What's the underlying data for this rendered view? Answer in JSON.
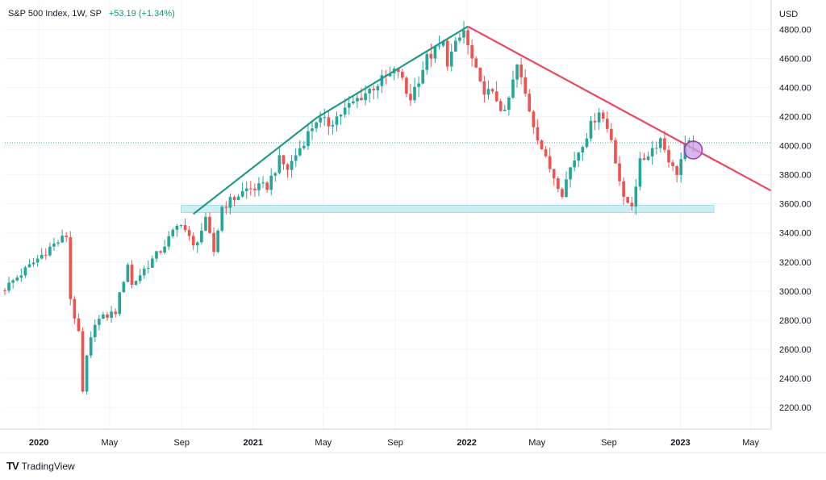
{
  "legend": {
    "symbol": "S&P 500 Index, 1W, SP",
    "change": "+53.19 (+1.34%)"
  },
  "brand": {
    "logo": "TV",
    "name": "TradingView"
  },
  "colors": {
    "up": "#26a69a",
    "down": "#ef5350",
    "support": "#cdeff3",
    "uptrend": "#1e9a87",
    "downtrend": "#e9475f",
    "marker": "#c8a0e8"
  },
  "chart_data": {
    "type": "candlestick",
    "currency_label": "USD",
    "yticks": [
      2200,
      2400,
      2600,
      2800,
      3000,
      3200,
      3400,
      3600,
      3800,
      4000,
      4200,
      4400,
      4600,
      4800
    ],
    "ylim": [
      2050,
      4880
    ],
    "xlim": [
      "2019-11-04",
      "2023-06-05"
    ],
    "xticks": [
      {
        "date": "2020-01-01",
        "label": "2020",
        "bold": true
      },
      {
        "date": "2020-05-01",
        "label": "May",
        "bold": false
      },
      {
        "date": "2020-09-01",
        "label": "Sep",
        "bold": false
      },
      {
        "date": "2021-01-01",
        "label": "2021",
        "bold": true
      },
      {
        "date": "2021-05-01",
        "label": "May",
        "bold": false
      },
      {
        "date": "2021-09-01",
        "label": "Sep",
        "bold": false
      },
      {
        "date": "2022-01-01",
        "label": "2022",
        "bold": true
      },
      {
        "date": "2022-05-01",
        "label": "May",
        "bold": false
      },
      {
        "date": "2022-09-01",
        "label": "Sep",
        "bold": false
      },
      {
        "date": "2023-01-01",
        "label": "2023",
        "bold": true
      },
      {
        "date": "2023-05-01",
        "label": "May",
        "bold": false
      }
    ],
    "last_price": 4020,
    "support_zone": {
      "from": "2020-08-31",
      "to": "2023-02-27",
      "low": 3540,
      "high": 3590
    },
    "trendlines": [
      {
        "name": "uptrend",
        "points": [
          [
            "2020-09-21",
            3530
          ],
          [
            "2021-04-19",
            4190
          ],
          [
            "2022-01-03",
            4820
          ]
        ]
      },
      {
        "name": "downtrend",
        "points": [
          [
            "2022-01-03",
            4820
          ],
          [
            "2023-06-05",
            3690
          ]
        ]
      }
    ],
    "marker": {
      "date": "2023-01-23",
      "value": 3970
    },
    "anchors": [
      [
        "2019-11-04",
        3020
      ],
      [
        "2019-12-16",
        3170
      ],
      [
        "2020-01-20",
        3300
      ],
      [
        "2020-02-17",
        3380
      ],
      [
        "2020-02-24",
        2950
      ],
      [
        "2020-03-09",
        2700
      ],
      [
        "2020-03-16",
        2300
      ],
      [
        "2020-03-23",
        2540
      ],
      [
        "2020-04-06",
        2790
      ],
      [
        "2020-04-27",
        2830
      ],
      [
        "2020-05-11",
        2860
      ],
      [
        "2020-06-01",
        3190
      ],
      [
        "2020-06-08",
        3040
      ],
      [
        "2020-06-29",
        3150
      ],
      [
        "2020-07-27",
        3280
      ],
      [
        "2020-08-31",
        3480
      ],
      [
        "2020-09-21",
        3300
      ],
      [
        "2020-10-12",
        3480
      ],
      [
        "2020-10-26",
        3270
      ],
      [
        "2020-11-09",
        3580
      ],
      [
        "2020-12-21",
        3700
      ],
      [
        "2021-01-25",
        3720
      ],
      [
        "2021-02-15",
        3900
      ],
      [
        "2021-03-01",
        3840
      ],
      [
        "2021-04-19",
        4180
      ],
      [
        "2021-05-10",
        4150
      ],
      [
        "2021-06-28",
        4320
      ],
      [
        "2021-08-09",
        4450
      ],
      [
        "2021-09-06",
        4520
      ],
      [
        "2021-09-20",
        4360
      ],
      [
        "2021-09-27",
        4330
      ],
      [
        "2021-10-25",
        4600
      ],
      [
        "2021-11-22",
        4700
      ],
      [
        "2021-11-29",
        4580
      ],
      [
        "2021-12-27",
        4790
      ],
      [
        "2022-01-03",
        4680
      ],
      [
        "2022-01-24",
        4410
      ],
      [
        "2022-02-21",
        4320
      ],
      [
        "2022-03-07",
        4210
      ],
      [
        "2022-03-28",
        4550
      ],
      [
        "2022-04-25",
        4150
      ],
      [
        "2022-05-16",
        3900
      ],
      [
        "2022-06-13",
        3680
      ],
      [
        "2022-06-27",
        3850
      ],
      [
        "2022-07-25",
        4080
      ],
      [
        "2022-08-15",
        4250
      ],
      [
        "2022-09-05",
        4050
      ],
      [
        "2022-09-26",
        3620
      ],
      [
        "2022-10-10",
        3600
      ],
      [
        "2022-10-24",
        3880
      ],
      [
        "2022-11-28",
        4050
      ],
      [
        "2022-12-19",
        3840
      ],
      [
        "2022-12-26",
        3820
      ],
      [
        "2023-01-09",
        3990
      ],
      [
        "2023-01-23",
        4020
      ]
    ]
  }
}
